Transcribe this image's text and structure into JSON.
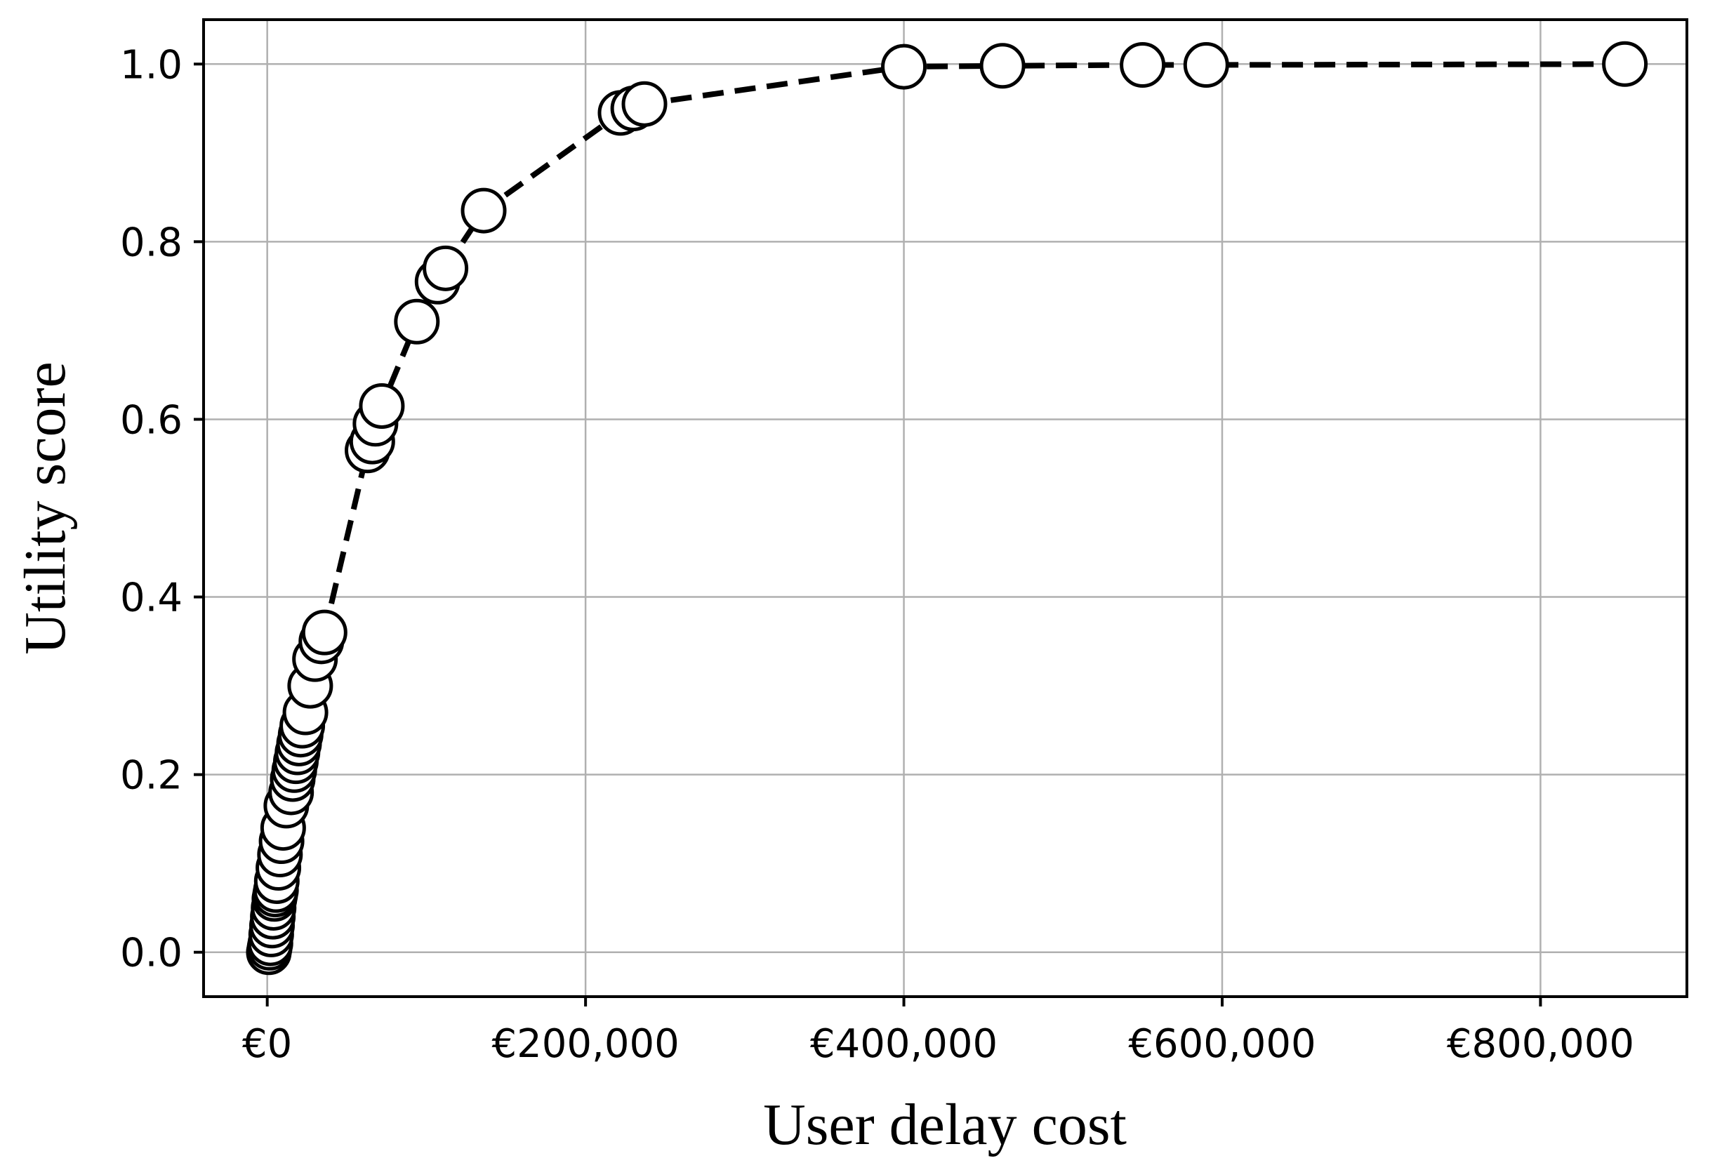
{
  "chart_data": {
    "type": "line",
    "xlabel": "User delay cost",
    "ylabel": "Utility score",
    "xlim": [
      -40000,
      892000
    ],
    "ylim": [
      -0.05,
      1.05
    ],
    "grid": true,
    "x_ticks": [
      0,
      200000,
      400000,
      600000,
      800000
    ],
    "x_tick_labels": [
      "€0",
      "€200,000",
      "€400,000",
      "€600,000",
      "€800,000"
    ],
    "y_ticks": [
      0.0,
      0.2,
      0.4,
      0.6,
      0.8,
      1.0
    ],
    "y_tick_labels": [
      "0.0",
      "0.2",
      "0.4",
      "0.6",
      "0.8",
      "1.0"
    ],
    "line_style": "dashed",
    "marker": "open-circle",
    "series": [
      {
        "x": [
          1000,
          1500,
          2000,
          2500,
          3000,
          3500,
          4000,
          4500,
          5000,
          5500,
          6000,
          7000,
          8000,
          9000,
          10000,
          12000,
          15000,
          16000,
          17000,
          18000,
          19000,
          20000,
          21000,
          22000,
          24000,
          27000,
          30000,
          34000,
          36000,
          63000,
          66000,
          68000,
          72000,
          94000,
          107000,
          112000,
          136000,
          222000,
          230000,
          237000,
          400000,
          462000,
          550000,
          590000,
          853000
        ],
        "y": [
          0.0,
          0.005,
          0.01,
          0.02,
          0.03,
          0.04,
          0.05,
          0.06,
          0.065,
          0.07,
          0.08,
          0.095,
          0.11,
          0.125,
          0.14,
          0.165,
          0.18,
          0.195,
          0.205,
          0.215,
          0.225,
          0.235,
          0.245,
          0.255,
          0.27,
          0.3,
          0.33,
          0.35,
          0.36,
          0.565,
          0.575,
          0.595,
          0.615,
          0.71,
          0.755,
          0.77,
          0.835,
          0.945,
          0.95,
          0.955,
          0.997,
          0.998,
          0.999,
          0.999,
          1.0
        ]
      }
    ]
  }
}
